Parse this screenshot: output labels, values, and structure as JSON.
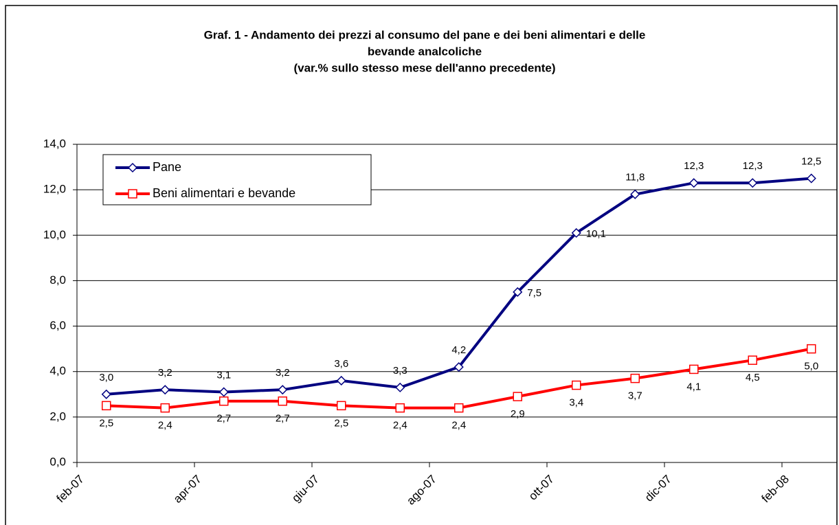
{
  "chart_data": {
    "type": "line",
    "title": [
      "Graf. 1 - Andamento dei prezzi al consumo del pane e dei beni alimentari e delle",
      "bevande analcoliche",
      "(var.% sullo stesso mese dell'anno precedente)"
    ],
    "categories": [
      "feb-07",
      null,
      "apr-07",
      null,
      "giu-07",
      null,
      "ago-07",
      null,
      "ott-07",
      null,
      "dic-07",
      null,
      "feb-08"
    ],
    "series": [
      {
        "name": "Pane",
        "color": "#000080",
        "marker": "diamond",
        "values": [
          3.0,
          3.2,
          3.1,
          3.2,
          3.6,
          3.3,
          4.2,
          7.5,
          10.1,
          11.8,
          12.3,
          12.3,
          12.5
        ],
        "value_labels": [
          "3,0",
          "3,2",
          "3,1",
          "3,2",
          "3,6",
          "3,3",
          "4,2",
          "7,5",
          "10,1",
          "11,8",
          "12,3",
          "12,3",
          "12,5"
        ]
      },
      {
        "name": "Beni alimentari e bevande",
        "color": "#ff0000",
        "marker": "square",
        "values": [
          2.5,
          2.4,
          2.7,
          2.7,
          2.5,
          2.4,
          2.4,
          2.9,
          3.4,
          3.7,
          4.1,
          4.5,
          5.0
        ],
        "value_labels": [
          "2,5",
          "2,4",
          "2,7",
          "2,7",
          "2,5",
          "2,4",
          "2,4",
          "2,9",
          "3,4",
          "3,7",
          "4,1",
          "4,5",
          "5,0"
        ]
      }
    ],
    "ylim": [
      0,
      14
    ],
    "yticks": [
      {
        "value": 0,
        "label": "0,0"
      },
      {
        "value": 2,
        "label": "2,0"
      },
      {
        "value": 4,
        "label": "4,0"
      },
      {
        "value": 6,
        "label": "6,0"
      },
      {
        "value": 8,
        "label": "8,0"
      },
      {
        "value": 10,
        "label": "10,0"
      },
      {
        "value": 12,
        "label": "12,0"
      },
      {
        "value": 14,
        "label": "14,0"
      }
    ],
    "grid": true,
    "legend": "upper left"
  }
}
